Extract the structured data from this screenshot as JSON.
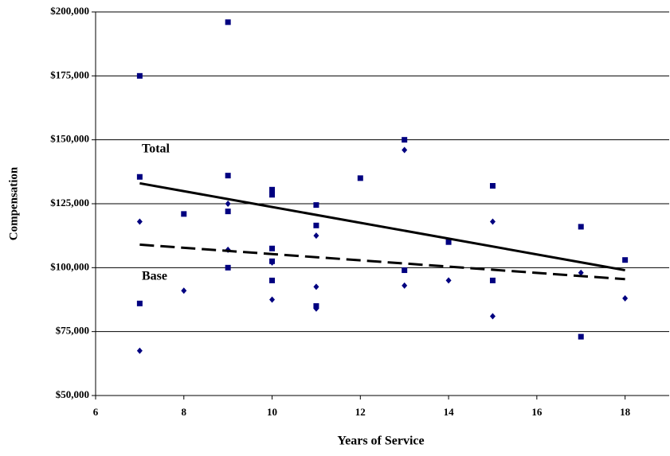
{
  "chart_data": {
    "type": "scatter",
    "x_label": "Years of Service",
    "y_label": "Compensation",
    "annotations": [
      "Total",
      "Base"
    ],
    "xlim": [
      6,
      19
    ],
    "xticks": [
      6,
      8,
      10,
      12,
      14,
      16,
      18
    ],
    "ylim": [
      50000,
      200000
    ],
    "yticks": [
      {
        "value": 50000,
        "label": "$50,000"
      },
      {
        "value": 75000,
        "label": "$75,000"
      },
      {
        "value": 100000,
        "label": "$100,000"
      },
      {
        "value": 125000,
        "label": "$125,000"
      },
      {
        "value": 150000,
        "label": "$150,000"
      },
      {
        "value": 175000,
        "label": "$175,000"
      },
      {
        "value": 200000,
        "label": "$200,000"
      }
    ],
    "grid": true,
    "series": [
      {
        "marker": "square",
        "color": "#000080",
        "x": [
          7,
          7,
          7,
          8,
          9,
          9,
          9,
          9,
          10,
          10,
          10,
          10,
          10,
          11,
          11,
          11,
          12,
          13,
          13,
          14,
          15,
          15,
          17,
          17,
          18
        ],
        "values": [
          175000,
          135500,
          86000,
          121000,
          196000,
          136000,
          122000,
          100000,
          130500,
          128500,
          107500,
          102500,
          95000,
          124500,
          116500,
          85000,
          135000,
          150000,
          99000,
          110000,
          132000,
          95000,
          116000,
          73000,
          103000
        ]
      },
      {
        "marker": "diamond",
        "color": "#000080",
        "x": [
          7,
          7,
          8,
          9,
          9,
          10,
          10,
          11,
          11,
          11,
          13,
          13,
          14,
          15,
          15,
          17,
          18
        ],
        "values": [
          118000,
          67500,
          91000,
          125000,
          107000,
          102000,
          87500,
          112500,
          92500,
          84000,
          146000,
          93000,
          95000,
          118000,
          81000,
          98000,
          88000
        ]
      }
    ],
    "trend_lines": [
      {
        "style": "solid",
        "x": [
          7,
          18
        ],
        "values": [
          133000,
          99000
        ]
      },
      {
        "style": "dashed",
        "x": [
          7,
          18
        ],
        "values": [
          109000,
          95500
        ]
      }
    ]
  }
}
